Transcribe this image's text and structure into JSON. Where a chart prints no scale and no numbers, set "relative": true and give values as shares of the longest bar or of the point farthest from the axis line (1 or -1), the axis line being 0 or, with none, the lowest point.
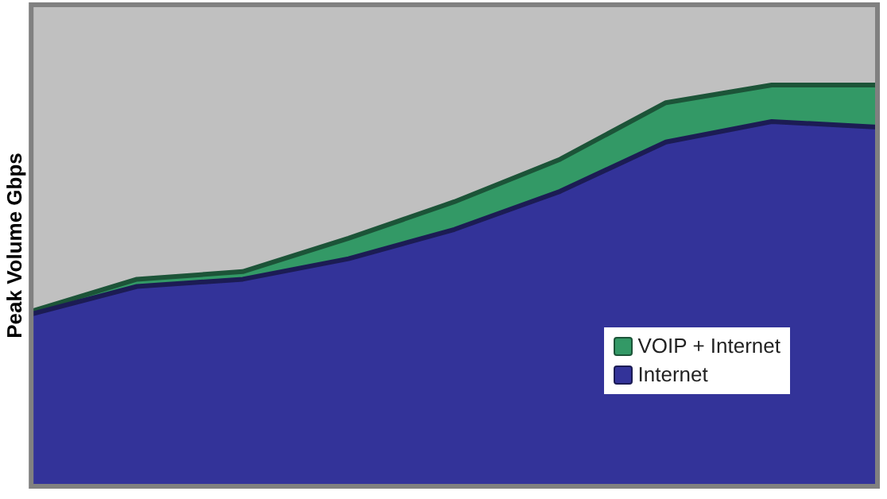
{
  "chart_data": {
    "type": "area",
    "ylabel": "Peak Volume Gbps",
    "relative": true,
    "categories": [
      null,
      null,
      null,
      null,
      null,
      null,
      null,
      null,
      null
    ],
    "legend": "bottom right",
    "grid": false,
    "series": [
      {
        "name": "VOIP + Internet",
        "color": "#339966",
        "values": [
          0.436,
          0.516,
          0.535,
          0.618,
          0.709,
          0.815,
          0.956,
          1,
          1
        ]
      },
      {
        "name": "Internet",
        "color": "#333399",
        "values": [
          0.429,
          0.498,
          0.516,
          0.567,
          0.64,
          0.735,
          0.858,
          0.909,
          0.895
        ]
      }
    ]
  }
}
